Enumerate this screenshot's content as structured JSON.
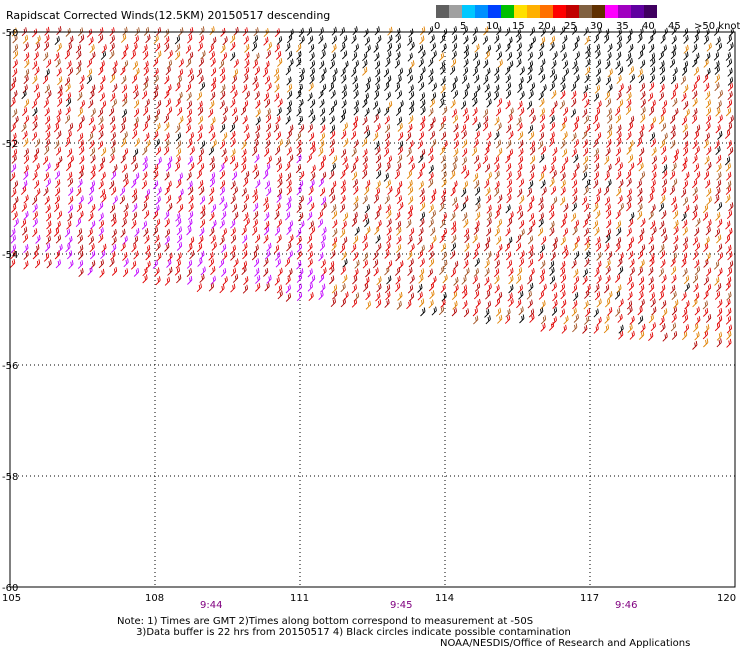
{
  "title": "Rapidscat Corrected Winds(12.5KM) 20150517 descending",
  "legend": {
    "colors": [
      "#606060",
      "#a0a0a0",
      "#00c8ff",
      "#0090ff",
      "#0040ff",
      "#00c000",
      "#ffe000",
      "#ffb000",
      "#ff7000",
      "#ff0000",
      "#c00000",
      "#806040",
      "#603000",
      "#ff00ff",
      "#a000c0",
      "#6000a0",
      "#400060"
    ],
    "labels": [
      "0",
      "5",
      "10",
      "15",
      "20",
      "25",
      "30",
      "35",
      "40",
      "45",
      ">50 knots"
    ]
  },
  "axes": {
    "lat_labels": [
      "-50",
      "-52",
      "-54",
      "-56",
      "-58",
      "-60"
    ],
    "lon_labels": [
      "105",
      "108",
      "111",
      "114",
      "117",
      "120"
    ]
  },
  "times": [
    "9:44",
    "9:45",
    "9:46"
  ],
  "notes": [
    "Note: 1) Times are GMT 2)Times along bottom correspond to measurement at -50S",
    "      3)Data buffer is 22 hrs from 20150517 4) Black circles indicate possible contamination"
  ],
  "credit": "NOAA/NESDIS/Office of Research and Applications",
  "wind_color_scale": {
    "black": "#000000",
    "red": "#e00000",
    "dark_red": "#b00000",
    "orange": "#e08000",
    "brown": "#a05020",
    "magenta": "#c000ff",
    "green": "#00b000"
  }
}
